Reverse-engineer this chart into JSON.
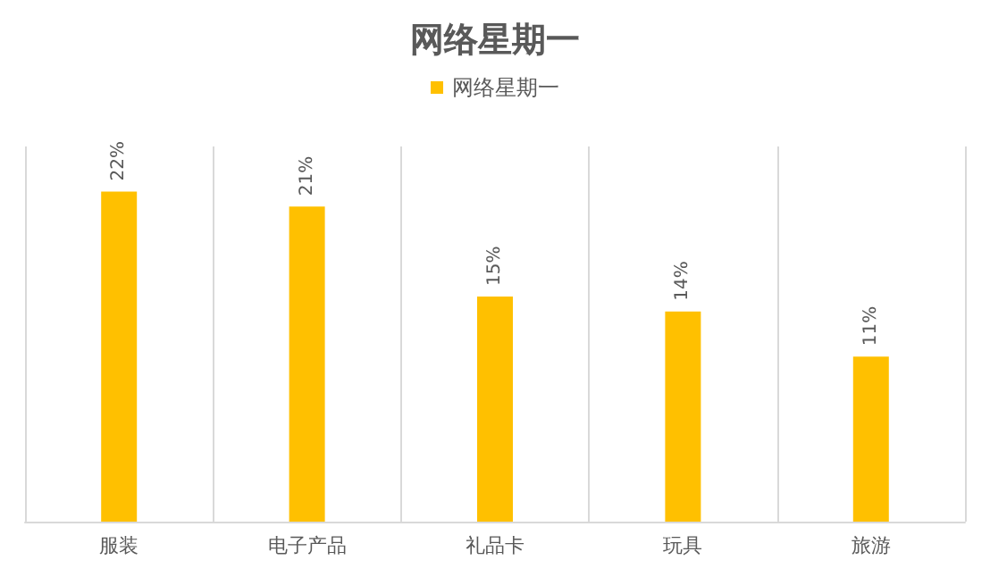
{
  "chart_data": {
    "type": "bar",
    "title": "网络星期一",
    "categories": [
      "服装",
      "电子产品",
      "礼品卡",
      "玩具",
      "旅游"
    ],
    "series": [
      {
        "name": "网络星期一",
        "color": "#ffc000",
        "values": [
          22,
          21,
          15,
          14,
          11
        ],
        "value_labels": [
          "22%",
          "21%",
          "15%",
          "14%",
          "11%"
        ]
      }
    ],
    "grid": "x",
    "legend": "top"
  }
}
